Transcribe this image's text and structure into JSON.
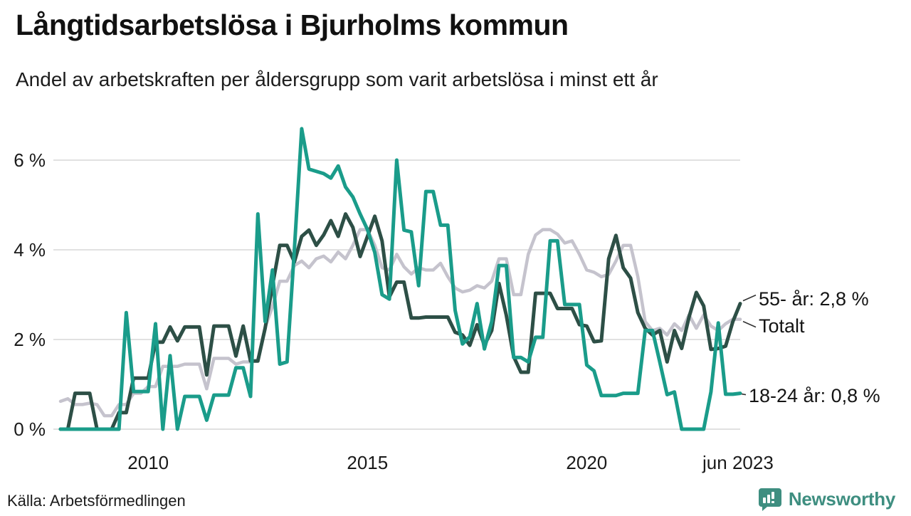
{
  "header": {
    "title": "Långtidsarbetslösa i Bjurholms kommun",
    "subtitle": "Andel av arbetskraften per åldersgrupp som varit arbetslösa i minst ett år"
  },
  "footer": {
    "source": "Källa: Arbetsförmedlingen",
    "brand": "Newsworthy"
  },
  "colors": {
    "accent_teal": "#1a9c8a",
    "dark_green": "#2d4f46",
    "gray_total": "#c5c3cd",
    "gridline": "#e1e1e1",
    "leader": "#333333",
    "brand_teal": "#3e8e80"
  },
  "chart_data": {
    "type": "line",
    "title": "Långtidsarbetslösa i Bjurholms kommun",
    "subtitle": "Andel av arbetskraften per åldersgrupp som varit arbetslösa i minst ett år",
    "xlabel": "",
    "ylabel": "",
    "x_start": 2008.0,
    "x_end": 2023.5,
    "x_step_months": 2,
    "ylim": [
      0,
      6.8
    ],
    "grid": "horizontal",
    "legend_position": "right-end-labels",
    "y_ticks": [
      {
        "value": 0,
        "label": "0 %"
      },
      {
        "value": 2,
        "label": "2 %"
      },
      {
        "value": 4,
        "label": "4 %"
      },
      {
        "value": 6,
        "label": "6 %"
      }
    ],
    "x_ticks": [
      {
        "value": 2010.0,
        "label": "2010"
      },
      {
        "value": 2015.0,
        "label": "2015"
      },
      {
        "value": 2020.0,
        "label": "2020"
      },
      {
        "value": 2023.45,
        "label": "jun 2023"
      }
    ],
    "series": [
      {
        "name": "Totalt",
        "end_label": "Totalt",
        "color": "#c5c3cd",
        "width": 4.5,
        "values": [
          0.62,
          0.68,
          0.55,
          0.55,
          0.58,
          0.55,
          0.3,
          0.3,
          0.55,
          0.55,
          0.8,
          0.8,
          0.95,
          0.95,
          1.4,
          1.4,
          1.4,
          1.45,
          1.45,
          1.45,
          0.9,
          1.58,
          1.58,
          1.58,
          1.45,
          1.5,
          1.5,
          1.55,
          2.27,
          2.73,
          3.3,
          3.3,
          3.65,
          3.75,
          3.6,
          3.8,
          3.86,
          3.73,
          3.95,
          3.8,
          4.1,
          4.45,
          4.45,
          4.1,
          3.6,
          3.55,
          3.9,
          3.62,
          3.46,
          3.6,
          3.55,
          3.55,
          3.7,
          3.4,
          3.15,
          3.06,
          3.1,
          3.2,
          3.15,
          3.3,
          3.8,
          3.8,
          3.0,
          3.0,
          3.9,
          4.33,
          4.45,
          4.45,
          4.35,
          4.15,
          4.2,
          3.9,
          3.55,
          3.5,
          3.4,
          3.45,
          3.75,
          4.1,
          4.1,
          3.4,
          2.4,
          2.2,
          2.25,
          2.1,
          2.35,
          2.2,
          2.55,
          2.25,
          2.55,
          2.3,
          2.2,
          2.35,
          2.45,
          2.45
        ]
      },
      {
        "name": "55- år",
        "end_label": "55- år: 2,8 %",
        "color": "#2d4f46",
        "width": 5,
        "values": [
          0,
          0,
          0.8,
          0.8,
          0.8,
          0,
          0,
          0,
          0.37,
          0.37,
          1.14,
          1.14,
          1.14,
          1.94,
          1.94,
          2.28,
          1.97,
          2.28,
          2.28,
          2.28,
          1.21,
          2.3,
          2.3,
          2.3,
          1.63,
          2.3,
          1.52,
          1.52,
          2.25,
          3.2,
          4.1,
          4.1,
          3.73,
          4.3,
          4.44,
          4.1,
          4.33,
          4.65,
          4.3,
          4.8,
          4.5,
          3.85,
          4.3,
          4.75,
          4.2,
          2.95,
          3.28,
          3.28,
          2.48,
          2.48,
          2.5,
          2.5,
          2.5,
          2.5,
          2.16,
          2.1,
          1.87,
          2.33,
          1.87,
          2.2,
          3.25,
          2.54,
          1.62,
          1.27,
          1.27,
          3.03,
          3.03,
          3.03,
          2.69,
          2.69,
          2.69,
          2.33,
          2.3,
          1.95,
          1.97,
          3.8,
          4.32,
          3.6,
          3.37,
          2.6,
          2.25,
          2.1,
          2.2,
          1.5,
          2.2,
          1.8,
          2.5,
          3.05,
          2.75,
          1.78,
          1.8,
          1.85,
          2.4,
          2.8
        ]
      },
      {
        "name": "18-24 år",
        "end_label": "18-24 år: 0,8 %",
        "color": "#1a9c8a",
        "width": 5,
        "values": [
          0,
          0,
          0,
          0,
          0,
          0,
          0,
          0,
          0,
          2.6,
          0.84,
          0.84,
          0.84,
          2.35,
          0,
          1.64,
          0,
          0.73,
          0.73,
          0.73,
          0.2,
          0.76,
          0.76,
          0.76,
          1.37,
          1.37,
          0.73,
          4.8,
          2.4,
          3.55,
          1.45,
          1.5,
          4.0,
          6.7,
          5.8,
          5.75,
          5.7,
          5.6,
          5.87,
          5.4,
          5.18,
          4.8,
          4.45,
          3.94,
          3.0,
          2.9,
          6.0,
          4.44,
          4.4,
          3.2,
          5.3,
          5.3,
          4.55,
          4.55,
          2.65,
          1.9,
          2.06,
          2.8,
          1.79,
          2.4,
          3.65,
          3.65,
          1.6,
          1.6,
          1.5,
          2.05,
          2.05,
          4.2,
          4.2,
          2.78,
          2.78,
          2.78,
          1.43,
          1.3,
          0.75,
          0.75,
          0.75,
          0.8,
          0.8,
          0.8,
          2.2,
          2.2,
          1.5,
          0.77,
          0.83,
          0,
          0,
          0,
          0,
          0.83,
          2.37,
          0.78,
          0.78,
          0.8
        ]
      }
    ]
  }
}
